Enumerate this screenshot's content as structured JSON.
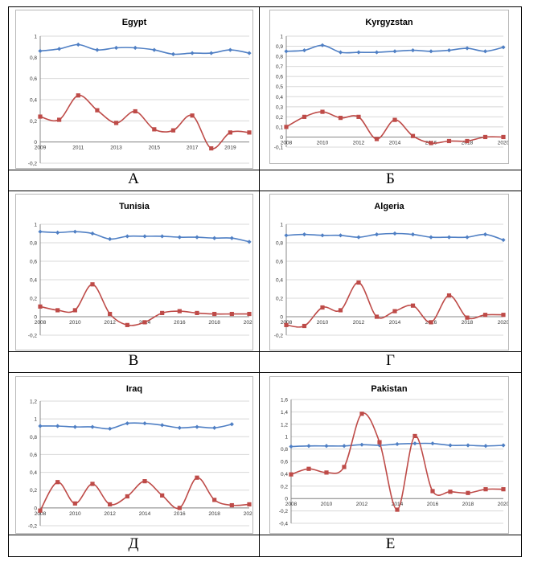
{
  "colors": {
    "series_a": "#4f7fc4",
    "series_b": "#be4b48",
    "gridline": "#d8d8d8",
    "axis": "#888888",
    "frame": "#b7b7b7"
  },
  "panel_labels": [
    "А",
    "Б",
    "В",
    "Г",
    "Д",
    "Е"
  ],
  "chart_data": [
    {
      "type": "line",
      "title": "Egypt",
      "panel": "А",
      "x": [
        2009,
        2010,
        2011,
        2012,
        2013,
        2014,
        2015,
        2016,
        2017,
        2018,
        2019,
        2020
      ],
      "x_ticks": [
        2009,
        2011,
        2013,
        2015,
        2017,
        2019
      ],
      "ylim": [
        -0.2,
        1
      ],
      "y_ticks": [
        -0.2,
        0,
        0.2,
        0.4,
        0.6,
        0.8,
        1
      ],
      "y_tick_labels": [
        "-0,2",
        "0",
        "0,2",
        "0,4",
        "0,6",
        "0,8",
        "1"
      ],
      "grid": true,
      "series": [
        {
          "values": [
            0.86,
            0.88,
            0.92,
            0.87,
            0.89,
            0.89,
            0.87,
            0.83,
            0.84,
            0.84,
            0.87,
            0.84
          ]
        },
        {
          "values": [
            0.24,
            0.21,
            0.44,
            0.3,
            0.18,
            0.29,
            0.12,
            0.11,
            0.25,
            -0.06,
            0.09,
            0.09
          ]
        }
      ]
    },
    {
      "type": "line",
      "title": "Kyrgyzstan",
      "panel": "Б",
      "x": [
        2008,
        2009,
        2010,
        2011,
        2012,
        2013,
        2014,
        2015,
        2016,
        2017,
        2018,
        2019,
        2020
      ],
      "x_ticks": [
        2008,
        2010,
        2012,
        2014,
        2016,
        2018,
        2020
      ],
      "ylim": [
        -0.1,
        1
      ],
      "y_ticks": [
        -0.1,
        0,
        0.1,
        0.2,
        0.3,
        0.4,
        0.5,
        0.6,
        0.7,
        0.8,
        0.9,
        1
      ],
      "y_tick_labels": [
        "-0,1",
        "0",
        "0,1",
        "0,2",
        "0,3",
        "0,4",
        "0,5",
        "0,6",
        "0,7",
        "0,8",
        "0,9",
        "1"
      ],
      "grid": true,
      "series": [
        {
          "values": [
            0.85,
            0.86,
            0.91,
            0.84,
            0.84,
            0.84,
            0.85,
            0.86,
            0.85,
            0.86,
            0.88,
            0.85,
            0.89
          ]
        },
        {
          "values": [
            0.1,
            0.2,
            0.25,
            0.19,
            0.2,
            -0.02,
            0.17,
            0.01,
            -0.06,
            -0.04,
            -0.04,
            0.0,
            0.0
          ]
        }
      ]
    },
    {
      "type": "line",
      "title": "Tunisia",
      "panel": "В",
      "x": [
        2008,
        2009,
        2010,
        2011,
        2012,
        2013,
        2014,
        2015,
        2016,
        2017,
        2018,
        2019,
        2020
      ],
      "x_ticks": [
        2008,
        2010,
        2012,
        2014,
        2016,
        2018,
        2020
      ],
      "ylim": [
        -0.2,
        1
      ],
      "y_ticks": [
        -0.2,
        0,
        0.2,
        0.4,
        0.6,
        0.8,
        1
      ],
      "y_tick_labels": [
        "-0,2",
        "0",
        "0,2",
        "0,4",
        "0,6",
        "0,8",
        "1"
      ],
      "grid": true,
      "series": [
        {
          "values": [
            0.92,
            0.91,
            0.92,
            0.9,
            0.84,
            0.87,
            0.87,
            0.87,
            0.86,
            0.86,
            0.85,
            0.85,
            0.81
          ]
        },
        {
          "values": [
            0.11,
            0.07,
            0.07,
            0.35,
            0.03,
            -0.09,
            -0.06,
            0.04,
            0.06,
            0.04,
            0.03,
            0.03,
            0.03
          ]
        }
      ]
    },
    {
      "type": "line",
      "title": "Algeria",
      "panel": "Г",
      "x": [
        2008,
        2009,
        2010,
        2011,
        2012,
        2013,
        2014,
        2015,
        2016,
        2017,
        2018,
        2019,
        2020
      ],
      "x_ticks": [
        2008,
        2010,
        2012,
        2014,
        2016,
        2018,
        2020
      ],
      "ylim": [
        -0.2,
        1
      ],
      "y_ticks": [
        -0.2,
        0,
        0.2,
        0.4,
        0.6,
        0.8,
        1
      ],
      "y_tick_labels": [
        "-0,2",
        "0",
        "0,2",
        "0,4",
        "0,6",
        "0,8",
        "1"
      ],
      "grid": true,
      "series": [
        {
          "values": [
            0.88,
            0.89,
            0.88,
            0.88,
            0.86,
            0.89,
            0.9,
            0.89,
            0.86,
            0.86,
            0.86,
            0.89,
            0.83
          ]
        },
        {
          "values": [
            -0.09,
            -0.1,
            0.1,
            0.07,
            0.37,
            0.0,
            0.06,
            0.12,
            -0.06,
            0.23,
            -0.01,
            0.02,
            0.02
          ]
        }
      ]
    },
    {
      "type": "line",
      "title": "Iraq",
      "panel": "Д",
      "x": [
        2008,
        2009,
        2010,
        2011,
        2012,
        2013,
        2014,
        2015,
        2016,
        2017,
        2018,
        2019,
        2020
      ],
      "x_ticks": [
        2008,
        2010,
        2012,
        2014,
        2016,
        2018,
        2020
      ],
      "ylim": [
        -0.2,
        1.2
      ],
      "y_ticks": [
        -0.2,
        0,
        0.2,
        0.4,
        0.6,
        0.8,
        1,
        1.2
      ],
      "y_tick_labels": [
        "-0,2",
        "0",
        "0,2",
        "0,4",
        "0,6",
        "0,8",
        "1",
        "1,2"
      ],
      "grid": true,
      "series": [
        {
          "values": [
            0.92,
            0.92,
            0.91,
            0.91,
            0.89,
            0.95,
            0.95,
            0.93,
            0.9,
            0.91,
            0.9,
            0.94,
            null
          ]
        },
        {
          "values": [
            -0.03,
            0.29,
            0.05,
            0.27,
            0.04,
            0.13,
            0.3,
            0.14,
            0.0,
            0.34,
            0.09,
            0.03,
            0.04
          ]
        }
      ]
    },
    {
      "type": "line",
      "title": "Pakistan",
      "panel": "Е",
      "x": [
        2008,
        2009,
        2010,
        2011,
        2012,
        2013,
        2014,
        2015,
        2016,
        2017,
        2018,
        2019,
        2020
      ],
      "x_ticks": [
        2008,
        2010,
        2012,
        2014,
        2016,
        2018,
        2020
      ],
      "ylim": [
        -0.4,
        1.6
      ],
      "y_ticks": [
        -0.4,
        -0.2,
        0,
        0.2,
        0.4,
        0.6,
        0.8,
        1,
        1.2,
        1.4,
        1.6
      ],
      "y_tick_labels": [
        "-0,4",
        "-0,2",
        "0",
        "0,2",
        "0,4",
        "0,6",
        "0,8",
        "1",
        "1,2",
        "1,4",
        "1,6"
      ],
      "grid": true,
      "series": [
        {
          "values": [
            0.84,
            0.85,
            0.85,
            0.85,
            0.87,
            0.86,
            0.88,
            0.89,
            0.89,
            0.86,
            0.86,
            0.85,
            0.86
          ]
        },
        {
          "values": [
            0.39,
            0.48,
            0.42,
            0.51,
            1.37,
            0.91,
            -0.18,
            1.01,
            0.12,
            0.11,
            0.09,
            0.15,
            0.15
          ]
        }
      ]
    }
  ]
}
